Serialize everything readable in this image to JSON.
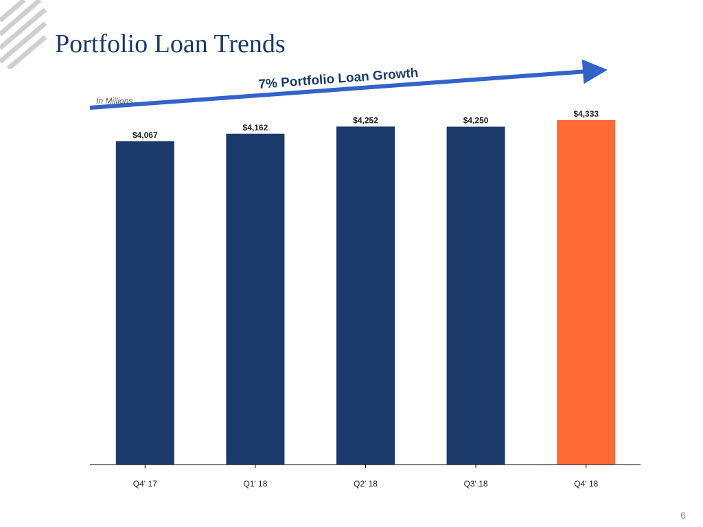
{
  "page": {
    "title": "Portfolio Loan Trends",
    "page_number": "6"
  },
  "annotation": {
    "growth_label": "7% Portfolio Loan Growth",
    "unit_label": "In Millions"
  },
  "colors": {
    "title": "#1b3a6b",
    "bar_primary": "#1b3a6b",
    "bar_highlight": "#ff6a35",
    "arrow": "#3263c8",
    "logo": "#c8c8c8"
  },
  "chart_data": {
    "type": "bar",
    "title": "",
    "xlabel": "",
    "ylabel": "",
    "categories": [
      "Q4' 17",
      "Q1' 18",
      "Q2' 18",
      "Q3' 18",
      "Q4' 18"
    ],
    "values": [
      4067,
      4162,
      4252,
      4250,
      4333
    ],
    "labels": [
      "$4,067",
      "$4,162",
      "$4,252",
      "$4,250",
      "$4,333"
    ],
    "highlight_index": 4,
    "ylim": [
      0,
      4333
    ],
    "grid": false,
    "legend": "none"
  }
}
